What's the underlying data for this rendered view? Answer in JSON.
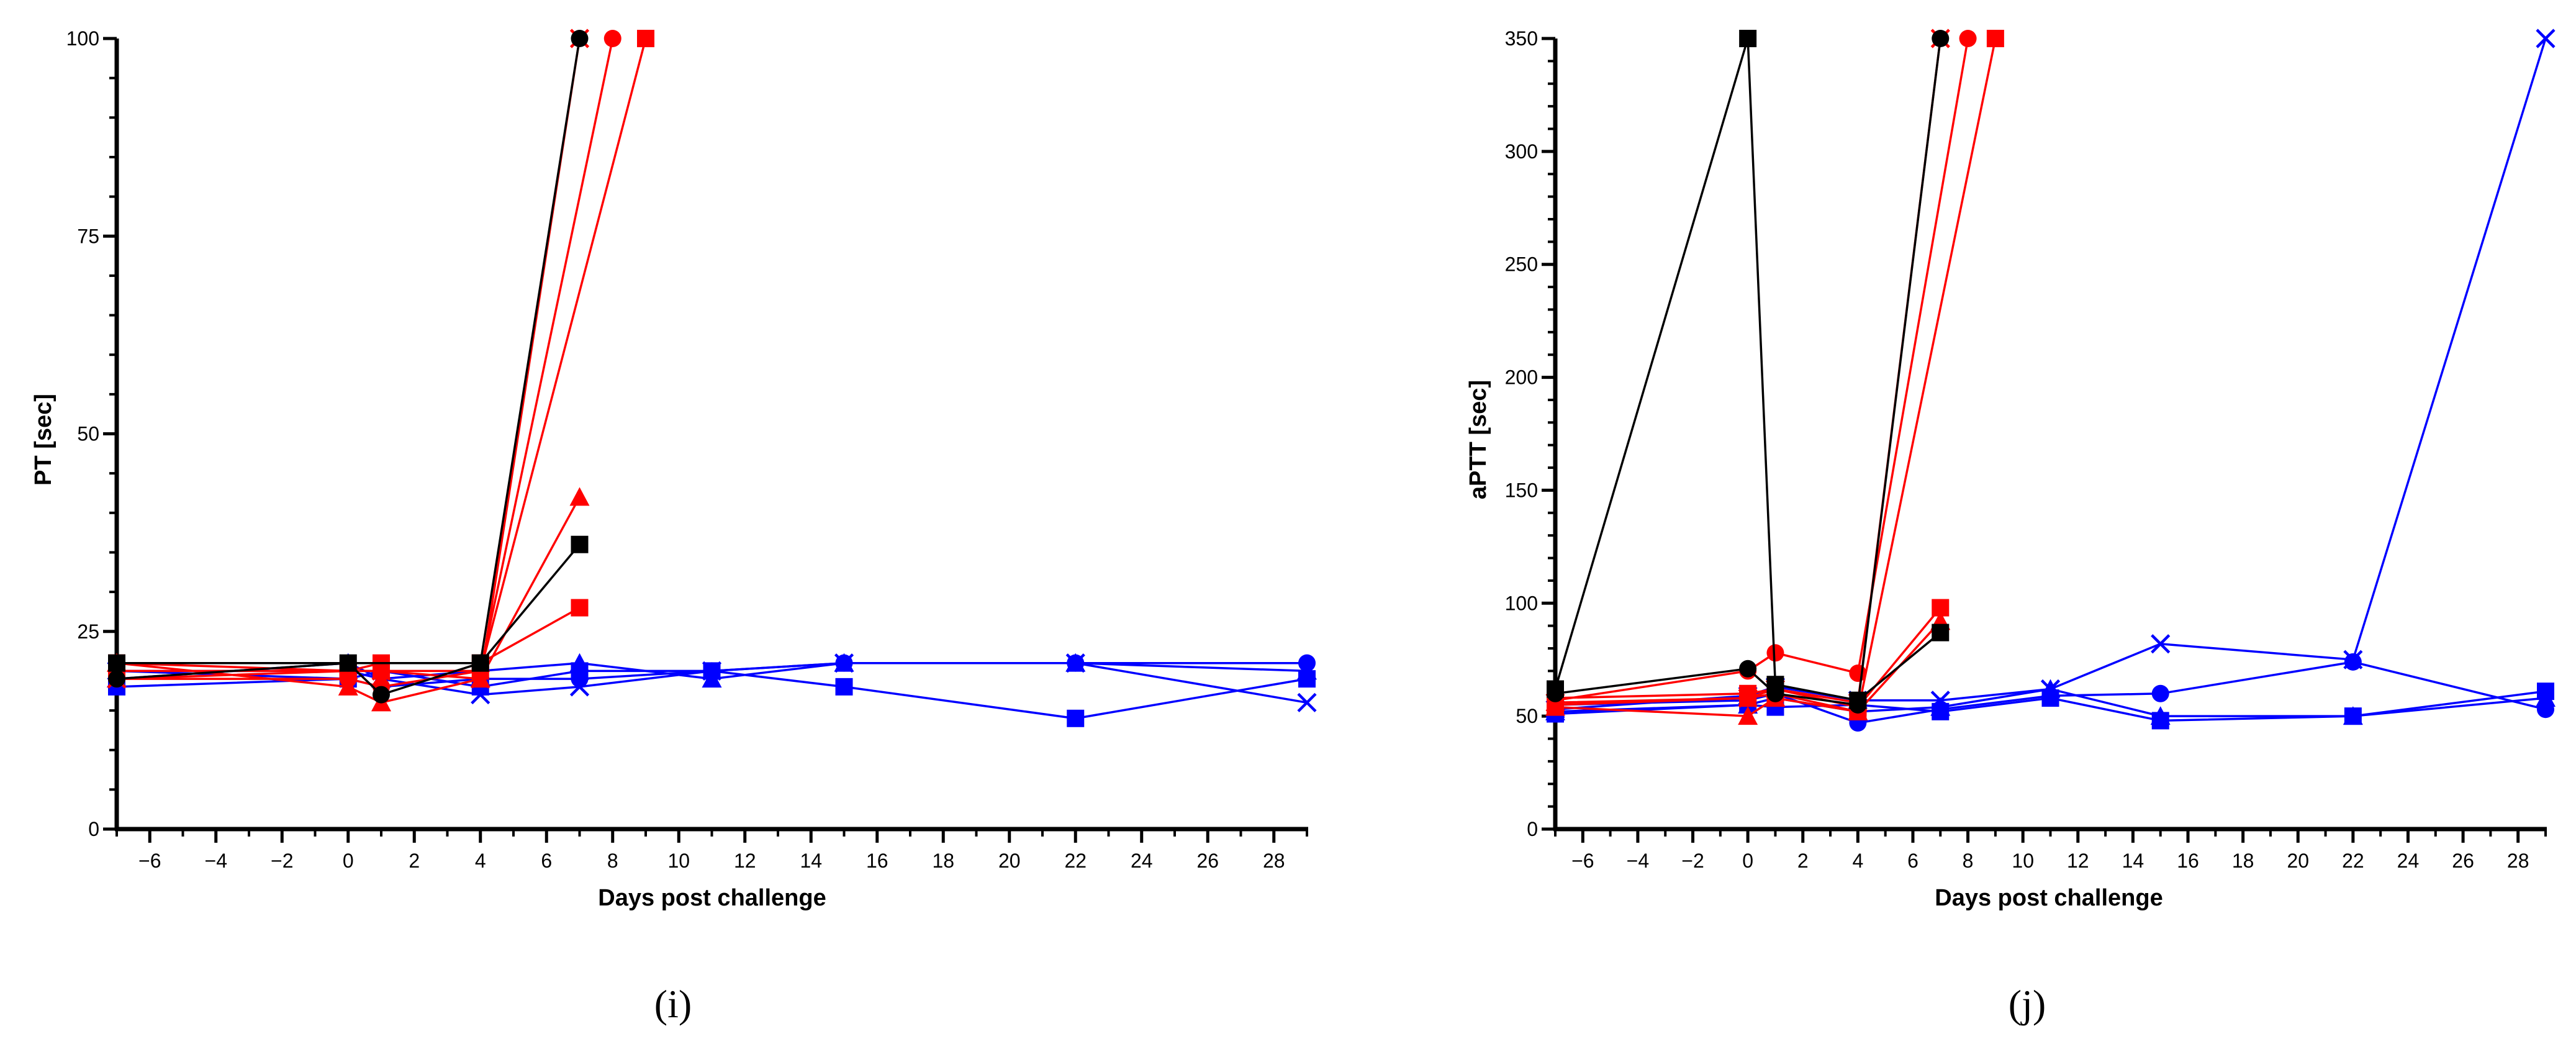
{
  "figure": {
    "panel_labels": [
      "(i)",
      "(j)"
    ]
  },
  "colors": {
    "black": "#000000",
    "red": "#ff0000",
    "blue": "#0000ff"
  },
  "chart_data": [
    {
      "type": "line",
      "panel": "(i)",
      "title": "",
      "xlabel": "Days post challenge",
      "ylabel": "PT [sec]",
      "xlim": [
        -7,
        29
      ],
      "ylim": [
        0,
        100
      ],
      "xticks": [
        -6,
        -4,
        -2,
        0,
        2,
        4,
        6,
        8,
        10,
        12,
        14,
        16,
        18,
        20,
        22,
        24,
        26,
        28
      ],
      "xtick_labels": [
        "−6",
        "−4",
        "−2",
        "0",
        "2",
        "4",
        "6",
        "8",
        "10",
        "12",
        "14",
        "16",
        "18",
        "20",
        "22",
        "24",
        "26",
        "28"
      ],
      "yticks": [
        0,
        25,
        50,
        75,
        100
      ],
      "ytick_labels": [
        "0",
        "25",
        "50",
        "75",
        "100"
      ],
      "series": [
        {
          "name": "black-square",
          "color": "black",
          "marker": "square",
          "x": [
            -7,
            0,
            4,
            7
          ],
          "y": [
            21,
            21,
            21,
            36
          ]
        },
        {
          "name": "black-circle",
          "color": "black",
          "marker": "circle",
          "x": [
            -7,
            0,
            1,
            4,
            7
          ],
          "y": [
            19,
            21,
            17,
            21,
            100
          ]
        },
        {
          "name": "red-square-1",
          "color": "red",
          "marker": "square",
          "x": [
            -7,
            0,
            1,
            4,
            7
          ],
          "y": [
            21,
            20,
            21,
            21,
            28
          ]
        },
        {
          "name": "red-square-2",
          "color": "red",
          "marker": "square",
          "x": [
            -7,
            0,
            1,
            4,
            9
          ],
          "y": [
            20,
            20,
            20,
            20,
            100
          ]
        },
        {
          "name": "red-triangle",
          "color": "red",
          "marker": "triangle",
          "x": [
            -7,
            0,
            1,
            4,
            7
          ],
          "y": [
            21,
            18,
            16,
            19,
            42
          ]
        },
        {
          "name": "red-circle",
          "color": "red",
          "marker": "circle",
          "x": [
            -7,
            0,
            1,
            4,
            8
          ],
          "y": [
            19,
            19,
            18,
            20,
            100
          ]
        },
        {
          "name": "red-x",
          "color": "red",
          "marker": "x",
          "x": [
            -7,
            0,
            1,
            4,
            7
          ],
          "y": [
            19,
            20,
            20,
            19,
            100
          ]
        },
        {
          "name": "blue-circle",
          "color": "blue",
          "marker": "circle",
          "x": [
            -7,
            0,
            1,
            4,
            7,
            11,
            15,
            22,
            29
          ],
          "y": [
            20,
            19,
            18,
            19,
            19,
            20,
            21,
            21,
            21
          ]
        },
        {
          "name": "blue-triangle",
          "color": "blue",
          "marker": "triangle",
          "x": [
            -7,
            0,
            1,
            4,
            7,
            11,
            15,
            22,
            29
          ],
          "y": [
            19,
            21,
            19,
            20,
            21,
            19,
            21,
            21,
            20
          ]
        },
        {
          "name": "blue-square",
          "color": "blue",
          "marker": "square",
          "x": [
            -7,
            0,
            1,
            4,
            7,
            11,
            15,
            22,
            29
          ],
          "y": [
            18,
            19,
            20,
            18,
            20,
            20,
            18,
            14,
            19
          ]
        },
        {
          "name": "blue-x",
          "color": "blue",
          "marker": "x",
          "x": [
            -7,
            0,
            1,
            4,
            7,
            11,
            15,
            22,
            29
          ],
          "y": [
            20,
            20,
            19,
            17,
            18,
            20,
            21,
            21,
            16
          ]
        }
      ]
    },
    {
      "type": "line",
      "panel": "(j)",
      "title": "",
      "xlabel": "Days post challenge",
      "ylabel": "aPTT [sec]",
      "xlim": [
        -7,
        29
      ],
      "ylim": [
        0,
        350
      ],
      "xticks": [
        -6,
        -4,
        -2,
        0,
        2,
        4,
        6,
        8,
        10,
        12,
        14,
        16,
        18,
        20,
        22,
        24,
        26,
        28
      ],
      "xtick_labels": [
        "−6",
        "−4",
        "−2",
        "0",
        "2",
        "4",
        "6",
        "8",
        "10",
        "12",
        "14",
        "16",
        "18",
        "20",
        "22",
        "24",
        "26",
        "28"
      ],
      "yticks": [
        0,
        50,
        100,
        150,
        200,
        250,
        300,
        350
      ],
      "ytick_labels": [
        "0",
        "50",
        "100",
        "150",
        "200",
        "250",
        "300",
        "350"
      ],
      "series": [
        {
          "name": "black-square",
          "color": "black",
          "marker": "square",
          "x": [
            -7,
            0,
            1,
            4,
            7
          ],
          "y": [
            62,
            350,
            64,
            57,
            87
          ]
        },
        {
          "name": "black-circle",
          "color": "black",
          "marker": "circle",
          "x": [
            -7,
            0,
            1,
            4,
            7
          ],
          "y": [
            60,
            71,
            60,
            55,
            350
          ]
        },
        {
          "name": "red-square-1",
          "color": "red",
          "marker": "square",
          "x": [
            -7,
            0,
            1,
            4,
            7
          ],
          "y": [
            58,
            60,
            62,
            54,
            98
          ]
        },
        {
          "name": "red-square-2",
          "color": "red",
          "marker": "square",
          "x": [
            -7,
            0,
            1,
            4,
            9
          ],
          "y": [
            55,
            58,
            60,
            52,
            350
          ]
        },
        {
          "name": "red-triangle",
          "color": "red",
          "marker": "triangle",
          "x": [
            -7,
            0,
            1,
            4,
            7
          ],
          "y": [
            54,
            50,
            58,
            52,
            92
          ]
        },
        {
          "name": "red-circle",
          "color": "red",
          "marker": "circle",
          "x": [
            -7,
            0,
            1,
            4,
            8
          ],
          "y": [
            57,
            70,
            78,
            69,
            350
          ]
        },
        {
          "name": "red-x",
          "color": "red",
          "marker": "x",
          "x": [
            -7,
            0,
            1,
            4,
            7
          ],
          "y": [
            56,
            58,
            62,
            56,
            350
          ]
        },
        {
          "name": "blue-circle",
          "color": "blue",
          "marker": "circle",
          "x": [
            -7,
            0,
            1,
            4,
            7,
            11,
            15,
            22,
            29
          ],
          "y": [
            55,
            57,
            60,
            47,
            53,
            59,
            60,
            74,
            53
          ]
        },
        {
          "name": "blue-triangle",
          "color": "blue",
          "marker": "triangle",
          "x": [
            -7,
            0,
            1,
            4,
            7,
            11,
            15,
            22,
            29
          ],
          "y": [
            52,
            55,
            58,
            52,
            54,
            62,
            50,
            50,
            58
          ]
        },
        {
          "name": "blue-square",
          "color": "blue",
          "marker": "square",
          "x": [
            -7,
            0,
            1,
            4,
            7,
            11,
            15,
            22,
            29
          ],
          "y": [
            51,
            55,
            54,
            55,
            52,
            58,
            48,
            50,
            61
          ]
        },
        {
          "name": "blue-x",
          "color": "blue",
          "marker": "x",
          "x": [
            -7,
            0,
            1,
            4,
            7,
            11,
            15,
            22,
            29
          ],
          "y": [
            53,
            59,
            63,
            57,
            57,
            62,
            82,
            75,
            350
          ]
        }
      ]
    }
  ]
}
